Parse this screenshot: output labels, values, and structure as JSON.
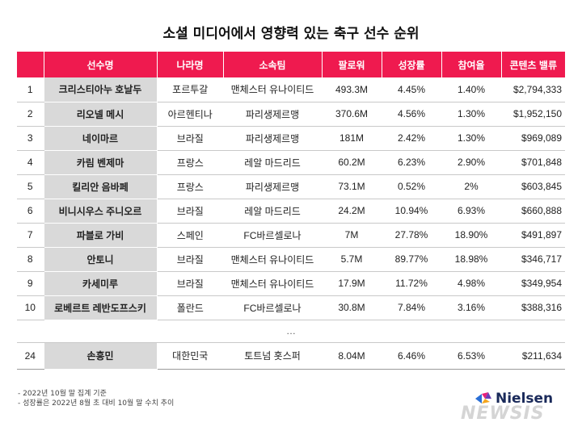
{
  "title": "소셜 미디어에서 영향력 있는 축구 선수 순위",
  "headers": [
    "",
    "선수명",
    "나라명",
    "소속팀",
    "팔로워",
    "성장률",
    "참여율",
    "콘텐츠 밸류"
  ],
  "rows": [
    {
      "rank": "1",
      "name": "크리스티아누 호날두",
      "country": "포르투갈",
      "team": "맨체스터 유나이티드",
      "followers": "493.3M",
      "growth": "4.45%",
      "engagement": "1.40%",
      "value": "$2,794,333"
    },
    {
      "rank": "2",
      "name": "리오넬 메시",
      "country": "아르헨티나",
      "team": "파리생제르맹",
      "followers": "370.6M",
      "growth": "4.56%",
      "engagement": "1.30%",
      "value": "$1,952,150"
    },
    {
      "rank": "3",
      "name": "네이마르",
      "country": "브라질",
      "team": "파리생제르맹",
      "followers": "181M",
      "growth": "2.42%",
      "engagement": "1.30%",
      "value": "$969,089"
    },
    {
      "rank": "4",
      "name": "카림 벤제마",
      "country": "프랑스",
      "team": "레알 마드리드",
      "followers": "60.2M",
      "growth": "6.23%",
      "engagement": "2.90%",
      "value": "$701,848"
    },
    {
      "rank": "5",
      "name": "킬리안 음바페",
      "country": "프랑스",
      "team": "파리생제르맹",
      "followers": "73.1M",
      "growth": "0.52%",
      "engagement": "2%",
      "value": "$603,845"
    },
    {
      "rank": "6",
      "name": "비니시우스 주니오르",
      "country": "브라질",
      "team": "레알 마드리드",
      "followers": "24.2M",
      "growth": "10.94%",
      "engagement": "6.93%",
      "value": "$660,888"
    },
    {
      "rank": "7",
      "name": "파블로 가비",
      "country": "스페인",
      "team": "FC바르셀로나",
      "followers": "7M",
      "growth": "27.78%",
      "engagement": "18.90%",
      "value": "$491,897"
    },
    {
      "rank": "8",
      "name": "안토니",
      "country": "브라질",
      "team": "맨체스터 유나이티드",
      "followers": "5.7M",
      "growth": "89.77%",
      "engagement": "18.98%",
      "value": "$346,717"
    },
    {
      "rank": "9",
      "name": "카세미루",
      "country": "브라질",
      "team": "맨체스터 유나이티드",
      "followers": "17.9M",
      "growth": "11.72%",
      "engagement": "4.98%",
      "value": "$349,954"
    },
    {
      "rank": "10",
      "name": "로베르트 레반도프스키",
      "country": "폴란드",
      "team": "FC바르셀로나",
      "followers": "30.8M",
      "growth": "7.84%",
      "engagement": "3.16%",
      "value": "$388,316"
    }
  ],
  "ellipsis": "…",
  "last_row": {
    "rank": "24",
    "name": "손흥민",
    "country": "대한민국",
    "team": "토트넘 홋스퍼",
    "followers": "8.04M",
    "growth": "6.46%",
    "engagement": "6.53%",
    "value": "$211,634"
  },
  "footnotes": [
    "-  2022년 10월 말 집계 기준",
    "-  성장률은 2022년 8월 초 대비 10월 말 수치 추이"
  ],
  "logo_text": "Nielsen",
  "watermark": "NEWSIS",
  "colors": {
    "header": "#ef1a4f",
    "name_cell": "#d9d9d9"
  }
}
